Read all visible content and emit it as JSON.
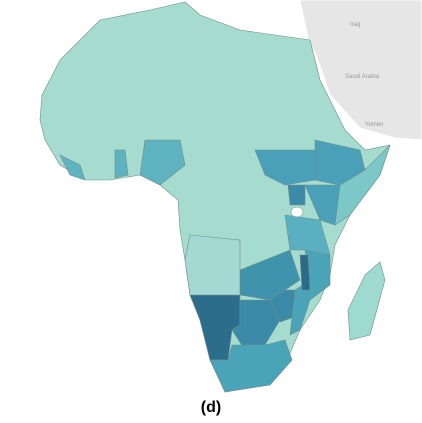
{
  "caption": "(d)",
  "labels": [
    "Iraq",
    "Saudi Arabia",
    "Yemen"
  ],
  "land_color": "#a6dccf",
  "neighbor_color": "#e6e6e6",
  "regions": [
    {
      "color": "#2d6d8c"
    },
    {
      "color": "#3a8aa8"
    },
    {
      "color": "#4aa4b8"
    },
    {
      "color": "#3a8aa8"
    },
    {
      "color": "#3f93ad"
    },
    {
      "color": "#4ba3b8"
    },
    {
      "color": "#2a6a8a"
    },
    {
      "color": "#5ab0c0"
    },
    {
      "color": "#4aa0b8"
    },
    {
      "color": "#4aa0b8"
    },
    {
      "color": "#4aa0b8"
    },
    {
      "color": "#7cc8c8"
    },
    {
      "color": "#3a8aa8"
    },
    {
      "color": "#5fb2c0"
    },
    {
      "color": "#5fb2c0"
    },
    {
      "color": "#5fb2c0"
    },
    {
      "color": "#a3d8d3"
    },
    {
      "color": "#9fdad0"
    }
  ]
}
